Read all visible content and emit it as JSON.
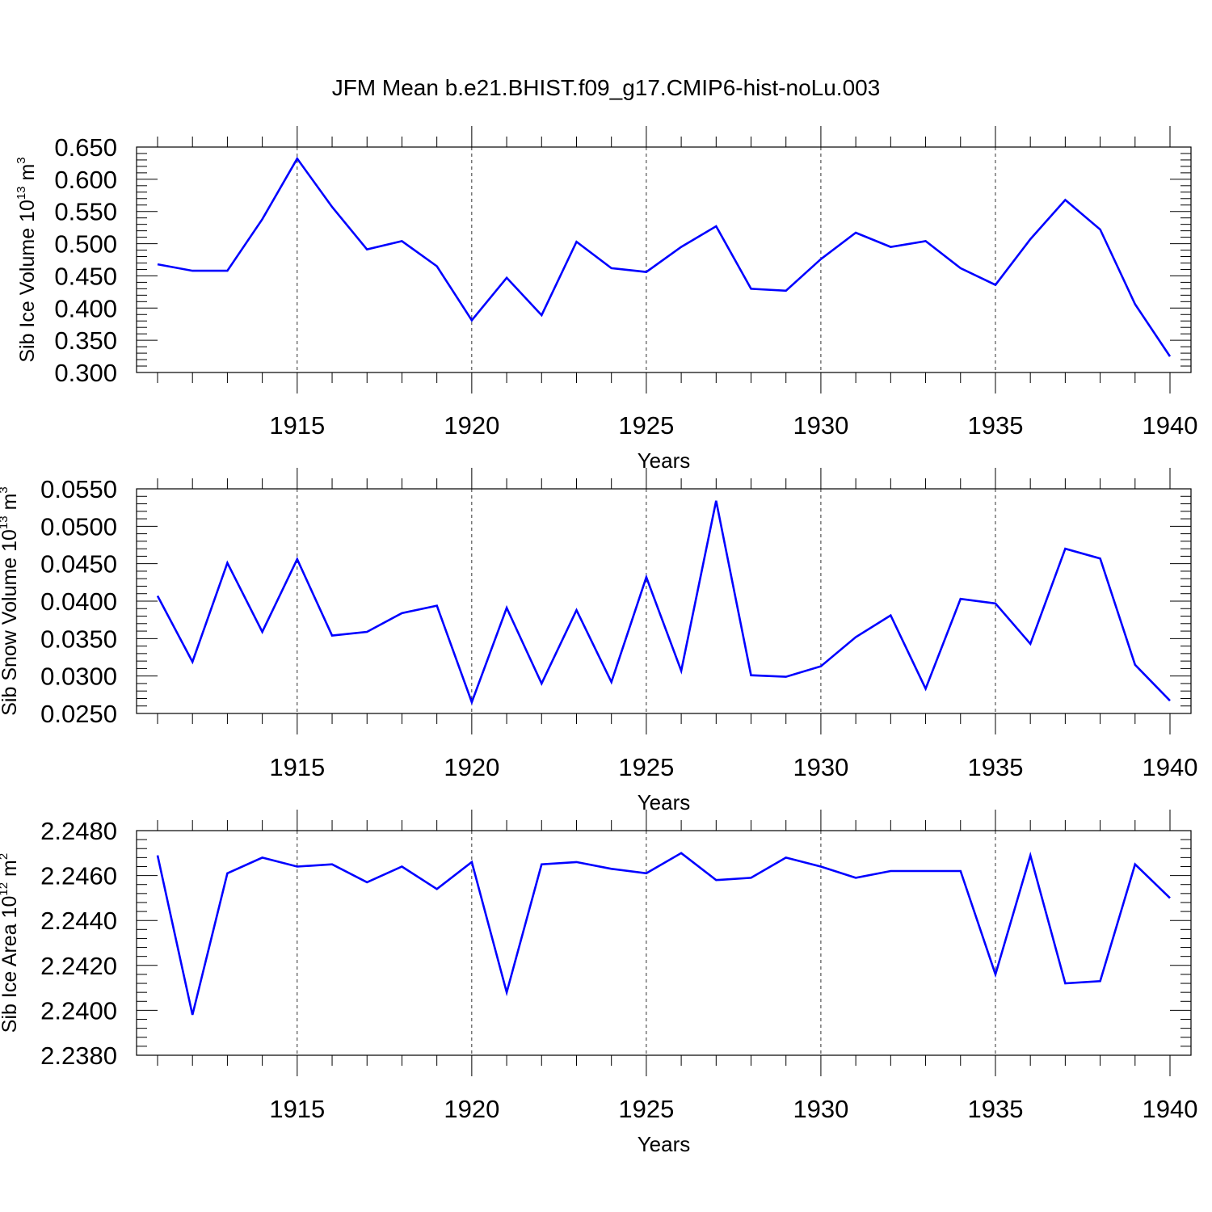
{
  "title": "JFM Mean b.e21.BHIST.f09_g17.CMIP6-hist-noLu.003",
  "colors": {
    "series": "#0000ff",
    "axis": "#000000",
    "grid": "#000000"
  },
  "chart_data": [
    {
      "type": "line",
      "ylabel_base": "Sib Ice Volume 10",
      "ylabel_exp": "13",
      "ylabel_unit": " m",
      "ylabel_unit_exp": "3",
      "xlabel": "Years",
      "xlim": [
        1911,
        1940
      ],
      "ylim": [
        0.3,
        0.65
      ],
      "yticks": [
        "0.650",
        "0.600",
        "0.550",
        "0.500",
        "0.450",
        "0.400",
        "0.350",
        "0.300"
      ],
      "xticks": [
        "1915",
        "1920",
        "1925",
        "1930",
        "1935",
        "1940"
      ],
      "grid": "dashed vertical at major x ticks",
      "x": [
        1911,
        1912,
        1913,
        1914,
        1915,
        1916,
        1917,
        1918,
        1919,
        1920,
        1921,
        1922,
        1923,
        1924,
        1925,
        1926,
        1927,
        1928,
        1929,
        1930,
        1931,
        1932,
        1933,
        1934,
        1935,
        1936,
        1937,
        1938,
        1939,
        1940
      ],
      "values": [
        0.468,
        0.458,
        0.458,
        0.538,
        0.632,
        0.557,
        0.491,
        0.504,
        0.465,
        0.381,
        0.447,
        0.389,
        0.503,
        0.462,
        0.456,
        0.495,
        0.527,
        0.43,
        0.427,
        0.476,
        0.517,
        0.495,
        0.504,
        0.462,
        0.436,
        0.507,
        0.568,
        0.522,
        0.406,
        0.325
      ]
    },
    {
      "type": "line",
      "ylabel_base": "Sib Snow Volume 10",
      "ylabel_exp": "13",
      "ylabel_unit": " m",
      "ylabel_unit_exp": "3",
      "xlabel": "Years",
      "xlim": [
        1911,
        1940
      ],
      "ylim": [
        0.025,
        0.055
      ],
      "yticks": [
        "0.0550",
        "0.0500",
        "0.0450",
        "0.0400",
        "0.0350",
        "0.0300",
        "0.0250"
      ],
      "xticks": [
        "1915",
        "1920",
        "1925",
        "1930",
        "1935",
        "1940"
      ],
      "grid": "dashed vertical at major x ticks",
      "x": [
        1911,
        1912,
        1913,
        1914,
        1915,
        1916,
        1917,
        1918,
        1919,
        1920,
        1921,
        1922,
        1923,
        1924,
        1925,
        1926,
        1927,
        1928,
        1929,
        1930,
        1931,
        1932,
        1933,
        1934,
        1935,
        1936,
        1937,
        1938,
        1939,
        1940
      ],
      "values": [
        0.0407,
        0.0319,
        0.0451,
        0.0359,
        0.0456,
        0.0354,
        0.0359,
        0.0384,
        0.0394,
        0.0265,
        0.0391,
        0.029,
        0.0388,
        0.0292,
        0.0432,
        0.0307,
        0.0534,
        0.0301,
        0.0299,
        0.0313,
        0.0352,
        0.0381,
        0.0283,
        0.0403,
        0.0397,
        0.0343,
        0.047,
        0.0457,
        0.0315,
        0.0267
      ]
    },
    {
      "type": "line",
      "ylabel_base": "Sib Ice Area 10",
      "ylabel_exp": "12",
      "ylabel_unit": " m",
      "ylabel_unit_exp": "2",
      "xlabel": "Years",
      "xlim": [
        1911,
        1940
      ],
      "ylim": [
        2.238,
        2.248
      ],
      "yticks": [
        "2.2480",
        "2.2460",
        "2.2440",
        "2.2420",
        "2.2400",
        "2.2380"
      ],
      "xticks": [
        "1915",
        "1920",
        "1925",
        "1930",
        "1935",
        "1940"
      ],
      "grid": "dashed vertical at major x ticks",
      "x": [
        1911,
        1912,
        1913,
        1914,
        1915,
        1916,
        1917,
        1918,
        1919,
        1920,
        1921,
        1922,
        1923,
        1924,
        1925,
        1926,
        1927,
        1928,
        1929,
        1930,
        1931,
        1932,
        1933,
        1934,
        1935,
        1936,
        1937,
        1938,
        1939,
        1940
      ],
      "values": [
        2.2469,
        2.2398,
        2.2461,
        2.2468,
        2.2464,
        2.2465,
        2.2457,
        2.2464,
        2.2454,
        2.2466,
        2.2408,
        2.2465,
        2.2466,
        2.2463,
        2.2461,
        2.247,
        2.2458,
        2.2459,
        2.2468,
        2.2464,
        2.2459,
        2.2462,
        2.2462,
        2.2462,
        2.2416,
        2.2469,
        2.2412,
        2.2413,
        2.2465,
        2.245
      ]
    }
  ]
}
